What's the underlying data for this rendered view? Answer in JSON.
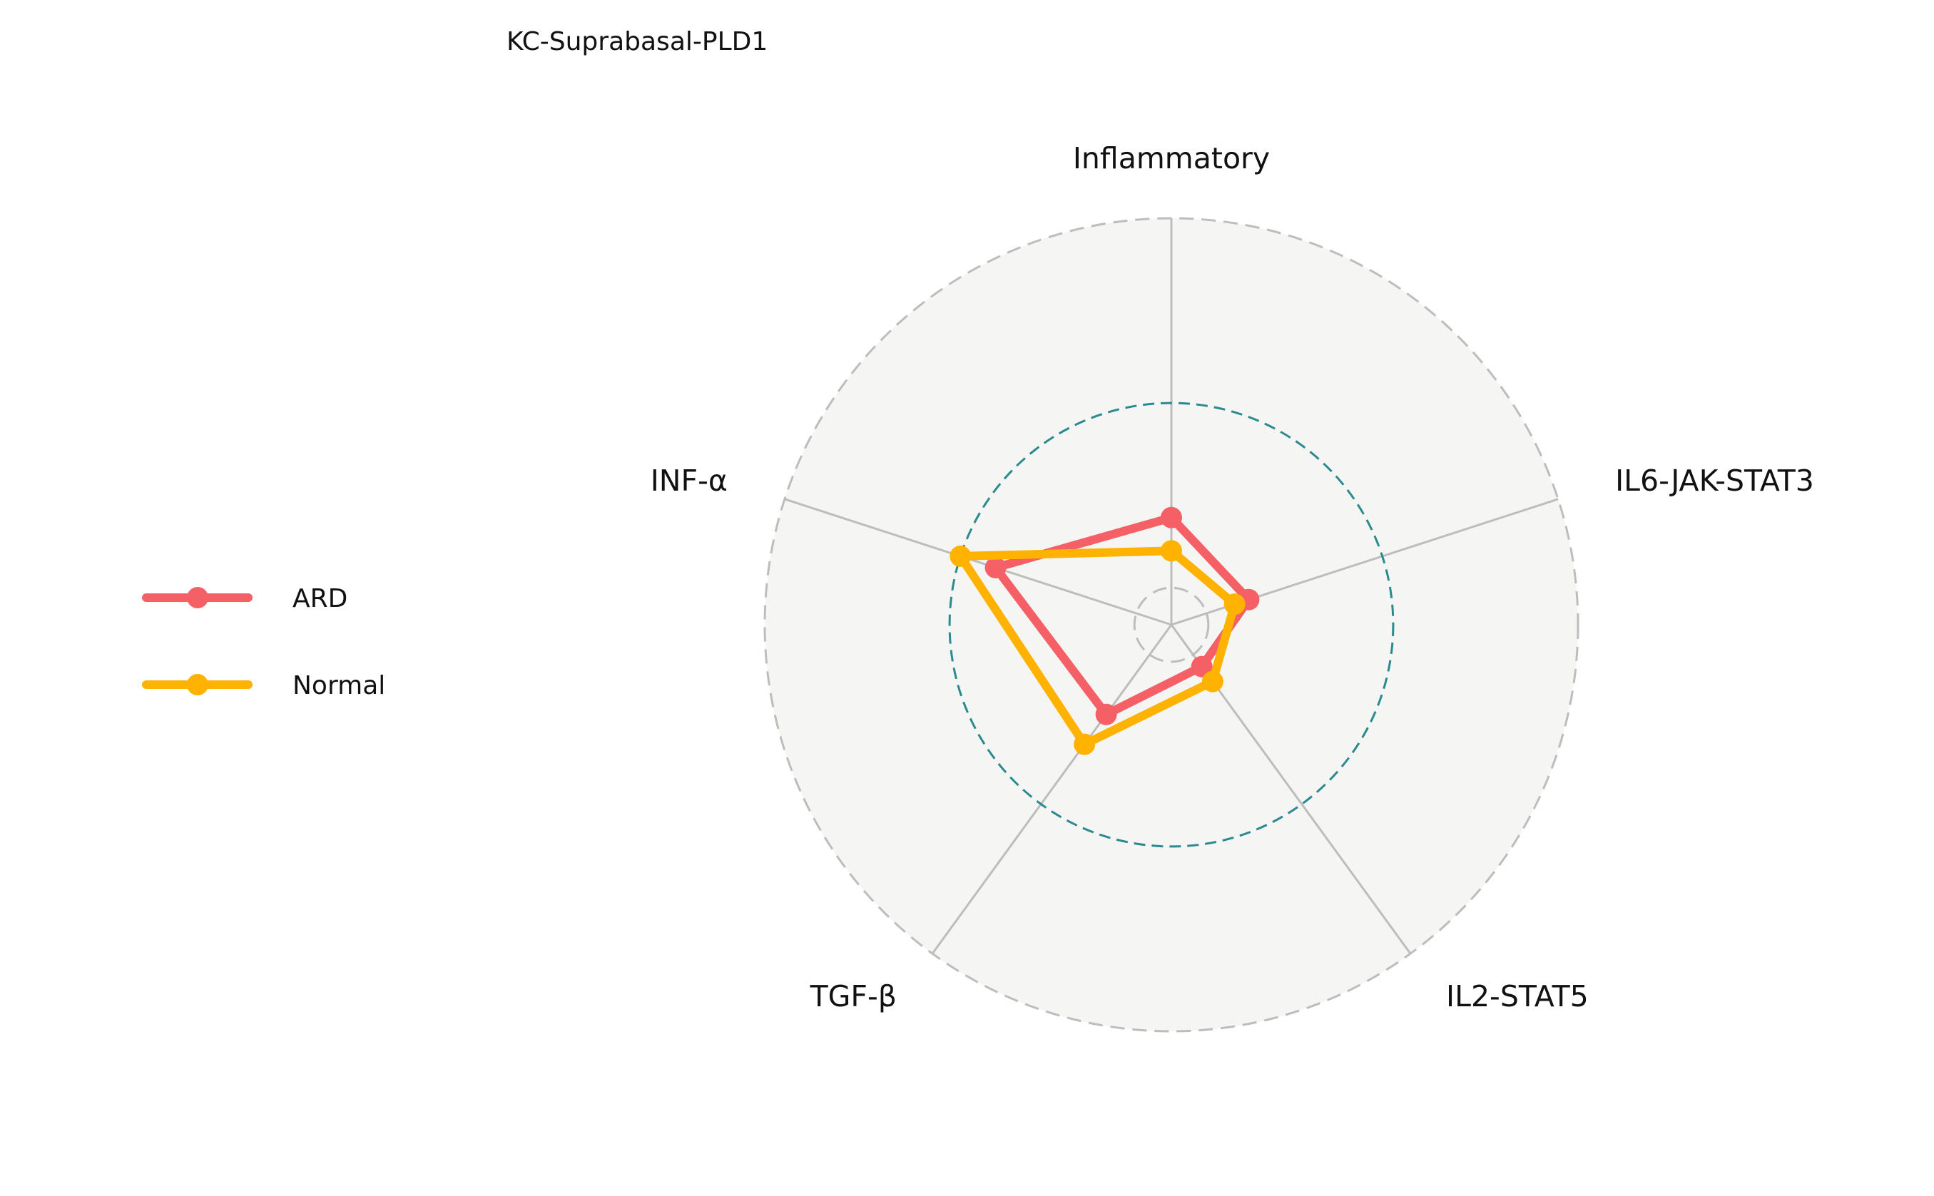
{
  "chart_data": {
    "type": "radar",
    "title": "KC-Suprabasal-PLD1",
    "axes": [
      "Inflammatory",
      "IL6-JAK-STAT3",
      "IL2-STAT5",
      "TGF-β",
      "INF-α"
    ],
    "rlim": [
      -0.1,
      1.0
    ],
    "gridlines": [
      0.0,
      0.5,
      1.0
    ],
    "series": [
      {
        "name": "ARD",
        "color": "#f55f66",
        "values": [
          0.19,
          0.12,
          0.04,
          0.2,
          0.4
        ]
      },
      {
        "name": "Normal",
        "color": "#ffb200",
        "values": [
          0.1,
          0.08,
          0.09,
          0.3,
          0.5
        ]
      }
    ],
    "legend_position": "left",
    "background_color": "#f5f5f3",
    "grid_color": "#bdbdbd",
    "mid_grid_color": "#2a8a8f"
  }
}
